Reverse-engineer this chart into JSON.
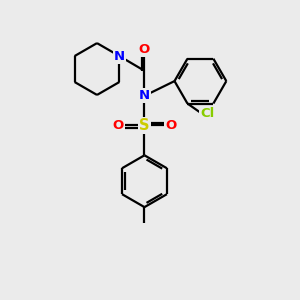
{
  "background_color": "#ebebeb",
  "atom_colors": {
    "N": "#0000ff",
    "O": "#ff0000",
    "S": "#cccc00",
    "Cl": "#88cc00",
    "C": "#000000"
  },
  "bond_color": "#000000",
  "bond_width": 1.6,
  "font_size_atom": 9.5
}
